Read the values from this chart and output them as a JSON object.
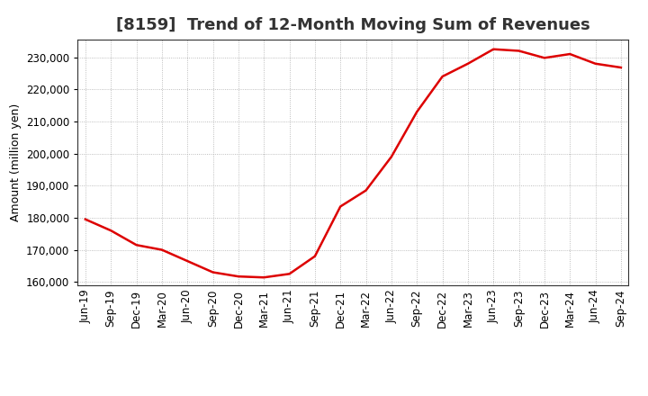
{
  "title": "[8159]  Trend of 12-Month Moving Sum of Revenues",
  "ylabel": "Amount (million yen)",
  "background_color": "#ffffff",
  "grid_color": "#aaaaaa",
  "line_color": "#dd0000",
  "x_labels": [
    "Jun-19",
    "Sep-19",
    "Dec-19",
    "Mar-20",
    "Jun-20",
    "Sep-20",
    "Dec-20",
    "Mar-21",
    "Jun-21",
    "Sep-21",
    "Dec-21",
    "Mar-22",
    "Jun-22",
    "Sep-22",
    "Dec-22",
    "Mar-23",
    "Jun-23",
    "Sep-23",
    "Dec-23",
    "Mar-24",
    "Jun-24",
    "Sep-24"
  ],
  "y_values": [
    179500,
    176000,
    171500,
    170000,
    166500,
    163000,
    161700,
    161400,
    162500,
    168000,
    183500,
    188500,
    199000,
    213000,
    224000,
    228000,
    232500,
    232000,
    229800,
    231000,
    228000,
    226800
  ],
  "ylim": [
    159000,
    235500
  ],
  "yticks": [
    160000,
    170000,
    180000,
    190000,
    200000,
    210000,
    220000,
    230000
  ],
  "title_fontsize": 13,
  "label_fontsize": 9,
  "tick_fontsize": 8.5,
  "line_width": 1.8
}
